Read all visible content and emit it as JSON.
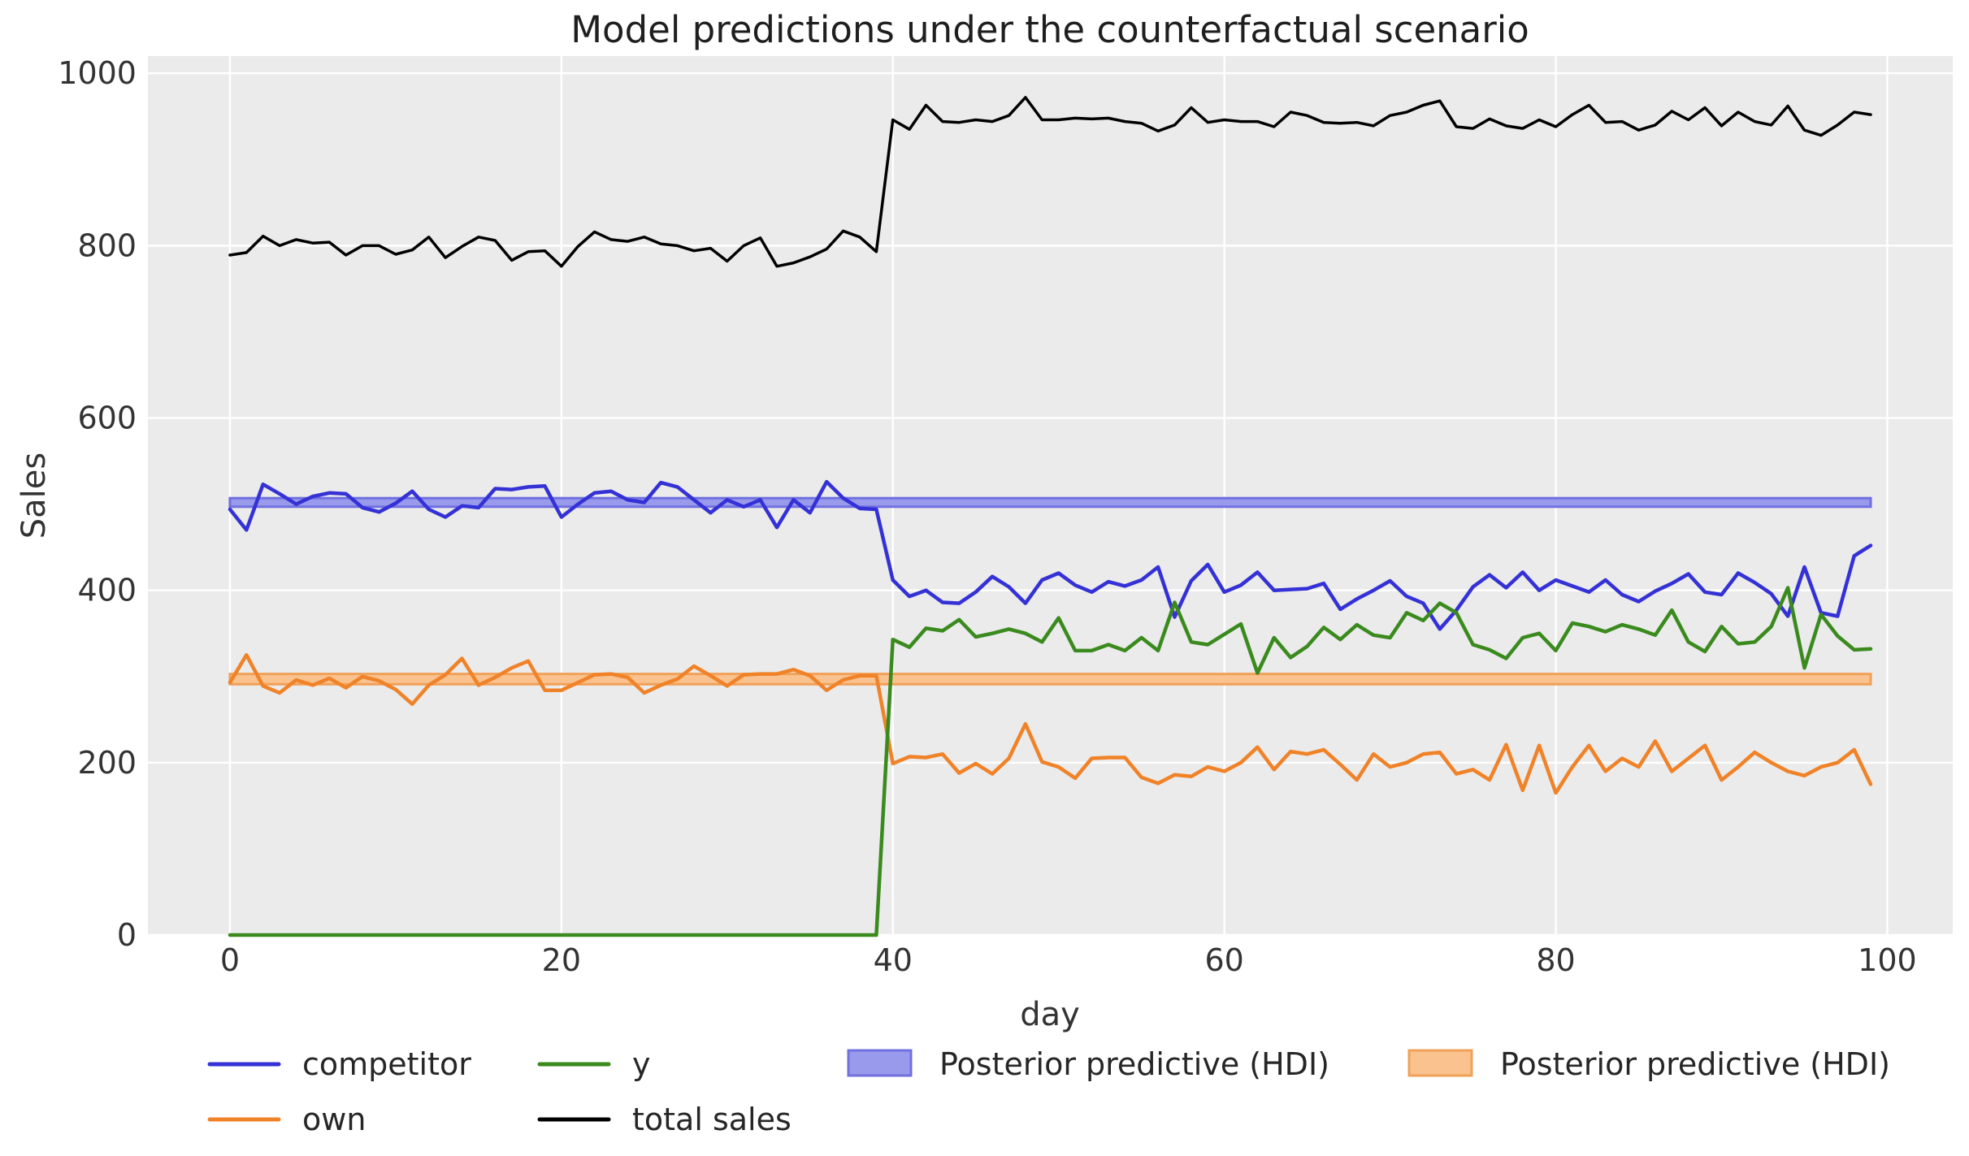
{
  "title": "Model predictions under the counterfactual scenario",
  "colors": {
    "plot_background": "#ebebeb",
    "grid": "#ffffff",
    "competitor_line": "#3431d6",
    "own_line": "#f08228",
    "y_line": "#3a8a1e",
    "total_sales_line": "#000000",
    "competitor_hdi_fill": "#9a9aec",
    "competitor_hdi_edge": "#7070df",
    "own_hdi_fill": "#f9c28e",
    "own_hdi_edge": "#f0a159"
  },
  "legend": {
    "entries": [
      {
        "label": "competitor",
        "type": "line",
        "color": "#3431d6"
      },
      {
        "label": "own",
        "type": "line",
        "color": "#f08228"
      },
      {
        "label": "y",
        "type": "line",
        "color": "#3a8a1e"
      },
      {
        "label": "total sales",
        "type": "line",
        "color": "#000000"
      },
      {
        "label": "Posterior predictive (HDI)",
        "type": "patch",
        "fill": "#9a9aec",
        "edge": "#7070df"
      },
      {
        "label": "Posterior predictive (HDI)",
        "type": "patch",
        "fill": "#f9c28e",
        "edge": "#f0a159"
      }
    ]
  },
  "chart_data": {
    "type": "line",
    "title": "Model predictions under the counterfactual scenario",
    "xlabel": "day",
    "ylabel": "Sales",
    "xlim": [
      -4.95,
      103.95
    ],
    "ylim": [
      0,
      1020
    ],
    "xticks": [
      0,
      20,
      40,
      60,
      80,
      100
    ],
    "yticks": [
      0,
      200,
      400,
      600,
      800,
      1000
    ],
    "grid": true,
    "legend_position": "below",
    "x": [
      0,
      1,
      2,
      3,
      4,
      5,
      6,
      7,
      8,
      9,
      10,
      11,
      12,
      13,
      14,
      15,
      16,
      17,
      18,
      19,
      20,
      21,
      22,
      23,
      24,
      25,
      26,
      27,
      28,
      29,
      30,
      31,
      32,
      33,
      34,
      35,
      36,
      37,
      38,
      39,
      40,
      41,
      42,
      43,
      44,
      45,
      46,
      47,
      48,
      49,
      50,
      51,
      52,
      53,
      54,
      55,
      56,
      57,
      58,
      59,
      60,
      61,
      62,
      63,
      64,
      65,
      66,
      67,
      68,
      69,
      70,
      71,
      72,
      73,
      74,
      75,
      76,
      77,
      78,
      79,
      80,
      81,
      82,
      83,
      84,
      85,
      86,
      87,
      88,
      89,
      90,
      91,
      92,
      93,
      94,
      95,
      96,
      97,
      98,
      99
    ],
    "series": [
      {
        "name": "competitor",
        "color": "#3431d6",
        "values": [
          494,
          470,
          523,
          512,
          500,
          509,
          513,
          512,
          496,
          491,
          501,
          515,
          494,
          485,
          498,
          496,
          518,
          517,
          520,
          521,
          485,
          500,
          513,
          515,
          505,
          502,
          525,
          520,
          505,
          490,
          505,
          497,
          505,
          473,
          505,
          490,
          526,
          507,
          495,
          494,
          412,
          393,
          400,
          386,
          385,
          398,
          416,
          404,
          385,
          412,
          420,
          406,
          398,
          410,
          405,
          412,
          427,
          369,
          411,
          430,
          398,
          406,
          421,
          400,
          401,
          402,
          408,
          378,
          390,
          400,
          411,
          393,
          385,
          355,
          377,
          404,
          418,
          403,
          421,
          400,
          412,
          405,
          398,
          412,
          395,
          387,
          399,
          408,
          419,
          398,
          395,
          420,
          409,
          396,
          370,
          427,
          374,
          370,
          440,
          452
        ]
      },
      {
        "name": "own",
        "color": "#f08228",
        "values": [
          293,
          325,
          289,
          281,
          296,
          290,
          298,
          287,
          300,
          295,
          285,
          268,
          290,
          302,
          321,
          290,
          299,
          310,
          318,
          284,
          284,
          293,
          302,
          303,
          299,
          281,
          290,
          297,
          312,
          301,
          289,
          302,
          303,
          303,
          308,
          301,
          284,
          296,
          301,
          301,
          199,
          207,
          206,
          210,
          188,
          199,
          187,
          205,
          245,
          201,
          195,
          182,
          205,
          206,
          206,
          183,
          176,
          186,
          184,
          195,
          190,
          200,
          218,
          192,
          213,
          210,
          215,
          198,
          180,
          210,
          195,
          200,
          210,
          212,
          187,
          192,
          180,
          221,
          168,
          220,
          165,
          195,
          220,
          190,
          205,
          195,
          225,
          190,
          205,
          220,
          180,
          195,
          212,
          200,
          190,
          185,
          195,
          200,
          215,
          175
        ]
      },
      {
        "name": "y",
        "color": "#3a8a1e",
        "values": [
          0,
          0,
          0,
          0,
          0,
          0,
          0,
          0,
          0,
          0,
          0,
          0,
          0,
          0,
          0,
          0,
          0,
          0,
          0,
          0,
          0,
          0,
          0,
          0,
          0,
          0,
          0,
          0,
          0,
          0,
          0,
          0,
          0,
          0,
          0,
          0,
          0,
          0,
          0,
          0,
          343,
          334,
          356,
          353,
          366,
          346,
          350,
          355,
          350,
          340,
          368,
          330,
          330,
          337,
          330,
          345,
          330,
          386,
          340,
          337,
          349,
          361,
          304,
          345,
          322,
          335,
          357,
          343,
          360,
          348,
          345,
          374,
          365,
          385,
          374,
          337,
          331,
          321,
          345,
          350,
          330,
          362,
          358,
          352,
          360,
          355,
          348,
          377,
          340,
          329,
          358,
          338,
          340,
          358,
          403,
          310,
          372,
          347,
          331,
          332
        ]
      },
      {
        "name": "total sales",
        "color": "#000000",
        "values": [
          789,
          792,
          811,
          800,
          807,
          803,
          804,
          789,
          800,
          800,
          790,
          795,
          810,
          786,
          799,
          810,
          806,
          783,
          793,
          794,
          776,
          799,
          816,
          807,
          805,
          810,
          802,
          800,
          794,
          797,
          782,
          800,
          809,
          776,
          780,
          787,
          796,
          817,
          810,
          793,
          946,
          935,
          963,
          944,
          943,
          946,
          944,
          951,
          972,
          946,
          946,
          948,
          947,
          948,
          944,
          942,
          933,
          940,
          960,
          943,
          946,
          944,
          944,
          938,
          955,
          951,
          943,
          942,
          943,
          939,
          951,
          955,
          963,
          968,
          938,
          936,
          947,
          939,
          936,
          946,
          938,
          952,
          963,
          943,
          944,
          934,
          940,
          956,
          946,
          960,
          939,
          955,
          944,
          940,
          962,
          934,
          928,
          940,
          955,
          952
        ]
      }
    ],
    "bands": [
      {
        "name": "Posterior predictive (HDI) - competitor",
        "x_range": [
          0,
          99
        ],
        "lo": 497,
        "hi": 507,
        "fill": "#9a9aec",
        "edge": "#7070df"
      },
      {
        "name": "Posterior predictive (HDI) - own",
        "x_range": [
          0,
          99
        ],
        "lo": 291,
        "hi": 303,
        "fill": "#f9c28e",
        "edge": "#f0a159"
      }
    ]
  }
}
